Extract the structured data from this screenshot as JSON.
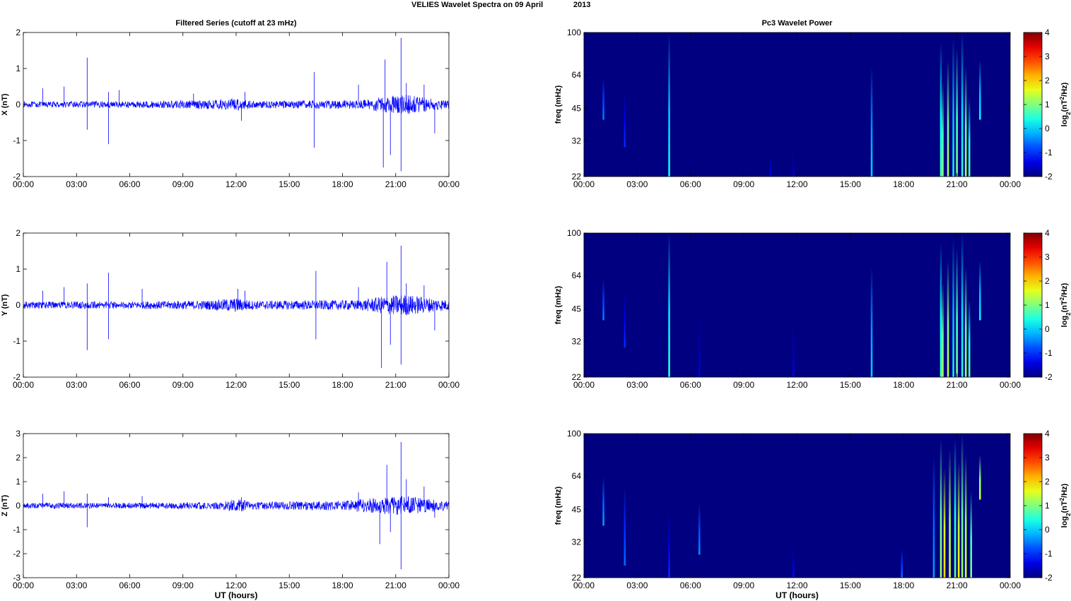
{
  "figure": {
    "title_left": "VELIES Wavelet Spectra on 09 April",
    "title_right": "2013"
  },
  "chart_data": [
    {
      "type": "line",
      "title": "Filtered Series (cutoff at 23 mHz)",
      "ylabel": "X (nT)",
      "xlabel": "",
      "ylim": [
        -2,
        2
      ],
      "yticks": [
        "-2",
        "-1",
        "0",
        "1",
        "2"
      ],
      "xticks": [
        "00:00",
        "03:00",
        "06:00",
        "09:00",
        "12:00",
        "15:00",
        "18:00",
        "21:00",
        "00:00"
      ],
      "xlim_hours": [
        0,
        24
      ],
      "line_color": "#0000ff",
      "series": [
        {
          "noise_amplitude": [
            [
              0,
              0.08
            ],
            [
              6,
              0.09
            ],
            [
              10.5,
              0.12
            ],
            [
              12,
              0.18
            ],
            [
              13,
              0.1
            ],
            [
              19,
              0.12
            ],
            [
              20.3,
              0.22
            ],
            [
              21.5,
              0.28
            ],
            [
              22.7,
              0.2
            ],
            [
              24,
              0.12
            ]
          ]
        }
      ],
      "spikes": [
        [
          1.1,
          0.45
        ],
        [
          2.3,
          0.5
        ],
        [
          3.6,
          1.3
        ],
        [
          3.6,
          -0.7
        ],
        [
          4.8,
          -1.1
        ],
        [
          4.8,
          0.35
        ],
        [
          5.4,
          0.4
        ],
        [
          9.6,
          0.3
        ],
        [
          12.3,
          -0.45
        ],
        [
          12.5,
          0.35
        ],
        [
          16.4,
          0.9
        ],
        [
          16.4,
          -1.2
        ],
        [
          18.9,
          0.55
        ],
        [
          20.3,
          -1.75
        ],
        [
          20.4,
          1.25
        ],
        [
          20.7,
          -1.4
        ],
        [
          21.3,
          1.85
        ],
        [
          21.3,
          -1.85
        ],
        [
          21.6,
          0.6
        ],
        [
          22.6,
          0.55
        ],
        [
          23.2,
          -0.8
        ]
      ]
    },
    {
      "type": "line",
      "title": "",
      "ylabel": "Y (nT)",
      "xlabel": "",
      "ylim": [
        -2,
        2
      ],
      "yticks": [
        "-2",
        "-1",
        "0",
        "1",
        "2"
      ],
      "xticks": [
        "00:00",
        "03:00",
        "06:00",
        "09:00",
        "12:00",
        "15:00",
        "18:00",
        "21:00",
        "00:00"
      ],
      "xlim_hours": [
        0,
        24
      ],
      "line_color": "#0000ff",
      "series": [
        {
          "noise_amplitude": [
            [
              0,
              0.1
            ],
            [
              6,
              0.1
            ],
            [
              10.5,
              0.13
            ],
            [
              12,
              0.2
            ],
            [
              13,
              0.12
            ],
            [
              19,
              0.14
            ],
            [
              20.3,
              0.25
            ],
            [
              21.5,
              0.3
            ],
            [
              22.7,
              0.22
            ],
            [
              24,
              0.14
            ]
          ]
        }
      ],
      "spikes": [
        [
          1.1,
          0.4
        ],
        [
          2.3,
          0.5
        ],
        [
          3.6,
          0.6
        ],
        [
          3.6,
          -1.25
        ],
        [
          4.8,
          0.9
        ],
        [
          4.8,
          -0.95
        ],
        [
          6.7,
          0.45
        ],
        [
          12.1,
          0.45
        ],
        [
          12.5,
          0.4
        ],
        [
          16.5,
          0.95
        ],
        [
          16.5,
          -0.95
        ],
        [
          18.9,
          0.5
        ],
        [
          20.2,
          -1.75
        ],
        [
          20.5,
          1.2
        ],
        [
          20.7,
          -1.1
        ],
        [
          21.3,
          1.65
        ],
        [
          21.3,
          -1.65
        ],
        [
          21.6,
          0.6
        ],
        [
          22.6,
          0.55
        ],
        [
          23.2,
          -0.7
        ]
      ]
    },
    {
      "type": "line",
      "title": "",
      "ylabel": "Z (nT)",
      "xlabel": "UT (hours)",
      "ylim": [
        -3,
        3
      ],
      "yticks": [
        "-3",
        "-2",
        "-1",
        "0",
        "1",
        "2",
        "3"
      ],
      "xticks": [
        "00:00",
        "03:00",
        "06:00",
        "09:00",
        "12:00",
        "15:00",
        "18:00",
        "21:00",
        "00:00"
      ],
      "xlim_hours": [
        0,
        24
      ],
      "line_color": "#0000ff",
      "series": [
        {
          "noise_amplitude": [
            [
              0,
              0.12
            ],
            [
              6,
              0.12
            ],
            [
              11,
              0.15
            ],
            [
              12,
              0.28
            ],
            [
              13,
              0.15
            ],
            [
              18,
              0.2
            ],
            [
              20.3,
              0.35
            ],
            [
              21.5,
              0.4
            ],
            [
              22.7,
              0.3
            ],
            [
              24,
              0.18
            ]
          ]
        }
      ],
      "spikes": [
        [
          1.1,
          0.5
        ],
        [
          2.3,
          0.6
        ],
        [
          3.6,
          0.5
        ],
        [
          3.6,
          -0.9
        ],
        [
          4.8,
          0.35
        ],
        [
          6.7,
          0.4
        ],
        [
          12.3,
          0.35
        ],
        [
          18.9,
          0.55
        ],
        [
          20.1,
          -1.6
        ],
        [
          20.5,
          1.7
        ],
        [
          20.7,
          -1.1
        ],
        [
          21.3,
          2.65
        ],
        [
          21.3,
          -2.65
        ],
        [
          21.6,
          1.1
        ],
        [
          22.6,
          0.8
        ],
        [
          23.2,
          -0.5
        ]
      ]
    },
    {
      "type": "heatmap",
      "title": "Pc3 Wavelet Power",
      "ylabel": "freq (mHz)",
      "xlabel": "",
      "ylog": true,
      "ylim": [
        22,
        100
      ],
      "yticks": [
        "22",
        "32",
        "45",
        "64",
        "100"
      ],
      "xticks": [
        "00:00",
        "03:00",
        "06:00",
        "09:00",
        "12:00",
        "15:00",
        "18:00",
        "21:00",
        "00:00"
      ],
      "xlim_hours": [
        0,
        24
      ],
      "colorbar": {
        "label": "log2(nT2/Hz)",
        "ticks": [
          "-2",
          "-1",
          "0",
          "1",
          "2",
          "3",
          "4"
        ],
        "range": [
          -2,
          4
        ],
        "colormap": "jet"
      },
      "background_value": -2,
      "streaks": [
        [
          1.1,
          40,
          62,
          -0.5
        ],
        [
          2.3,
          30,
          55,
          -1.0
        ],
        [
          4.8,
          22,
          100,
          0.3
        ],
        [
          10.5,
          22,
          28,
          -1.3
        ],
        [
          11.8,
          22,
          30,
          -1.4
        ],
        [
          16.2,
          22,
          70,
          0.0
        ],
        [
          20.1,
          22,
          90,
          0.6
        ],
        [
          20.2,
          22,
          60,
          1.0
        ],
        [
          20.5,
          22,
          75,
          1.3
        ],
        [
          20.8,
          22,
          95,
          0.2
        ],
        [
          21.0,
          22,
          85,
          1.0
        ],
        [
          21.3,
          22,
          100,
          0.5
        ],
        [
          21.5,
          22,
          70,
          1.2
        ],
        [
          21.7,
          22,
          50,
          0.8
        ],
        [
          22.3,
          40,
          75,
          0.2
        ]
      ]
    },
    {
      "type": "heatmap",
      "title": "",
      "ylabel": "freq (mHz)",
      "xlabel": "",
      "ylog": true,
      "ylim": [
        22,
        100
      ],
      "yticks": [
        "22",
        "32",
        "45",
        "64",
        "100"
      ],
      "xticks": [
        "00:00",
        "03:00",
        "06:00",
        "09:00",
        "12:00",
        "15:00",
        "18:00",
        "21:00",
        "00:00"
      ],
      "xlim_hours": [
        0,
        24
      ],
      "colorbar": {
        "label": "log2(nT2/Hz)",
        "ticks": [
          "-2",
          "-1",
          "0",
          "1",
          "2",
          "3",
          "4"
        ],
        "range": [
          -2,
          4
        ],
        "colormap": "jet"
      },
      "background_value": -2,
      "streaks": [
        [
          1.1,
          40,
          62,
          -0.5
        ],
        [
          2.3,
          30,
          55,
          -1.0
        ],
        [
          4.8,
          22,
          100,
          0.5
        ],
        [
          6.5,
          22,
          50,
          -1.4
        ],
        [
          11.8,
          22,
          40,
          -1.3
        ],
        [
          16.2,
          22,
          70,
          0.0
        ],
        [
          20.1,
          22,
          90,
          0.6
        ],
        [
          20.2,
          22,
          60,
          1.2
        ],
        [
          20.5,
          22,
          75,
          1.4
        ],
        [
          20.8,
          22,
          95,
          0.2
        ],
        [
          21.0,
          22,
          85,
          1.0
        ],
        [
          21.3,
          22,
          100,
          0.5
        ],
        [
          21.5,
          22,
          70,
          1.2
        ],
        [
          21.7,
          22,
          50,
          0.8
        ],
        [
          22.3,
          40,
          75,
          0.2
        ]
      ]
    },
    {
      "type": "heatmap",
      "title": "",
      "ylabel": "freq (mHz)",
      "xlabel": "UT (hours)",
      "ylog": true,
      "ylim": [
        22,
        100
      ],
      "yticks": [
        "22",
        "32",
        "45",
        "64",
        "100"
      ],
      "xticks": [
        "00:00",
        "03:00",
        "06:00",
        "09:00",
        "12:00",
        "15:00",
        "18:00",
        "21:00",
        "00:00"
      ],
      "xlim_hours": [
        0,
        24
      ],
      "colorbar": {
        "label": "log2(nT2/Hz)",
        "ticks": [
          "-2",
          "-1",
          "0",
          "1",
          "2",
          "3",
          "4"
        ],
        "range": [
          -2,
          4
        ],
        "colormap": "jet"
      },
      "background_value": -2,
      "streaks": [
        [
          1.1,
          38,
          64,
          -0.3
        ],
        [
          2.3,
          25,
          58,
          -0.6
        ],
        [
          4.8,
          22,
          45,
          -1.0
        ],
        [
          6.5,
          28,
          48,
          -0.4
        ],
        [
          11.8,
          22,
          30,
          -1.2
        ],
        [
          17.9,
          22,
          30,
          -0.6
        ],
        [
          19.7,
          22,
          80,
          -0.3
        ],
        [
          20.1,
          22,
          95,
          1.2
        ],
        [
          20.3,
          22,
          70,
          2.0
        ],
        [
          20.6,
          22,
          85,
          1.6
        ],
        [
          20.9,
          22,
          95,
          0.8
        ],
        [
          21.1,
          22,
          75,
          1.8
        ],
        [
          21.3,
          22,
          100,
          1.2
        ],
        [
          21.5,
          22,
          80,
          1.6
        ],
        [
          21.8,
          22,
          55,
          1.0
        ],
        [
          22.3,
          50,
          80,
          1.4
        ]
      ]
    }
  ]
}
